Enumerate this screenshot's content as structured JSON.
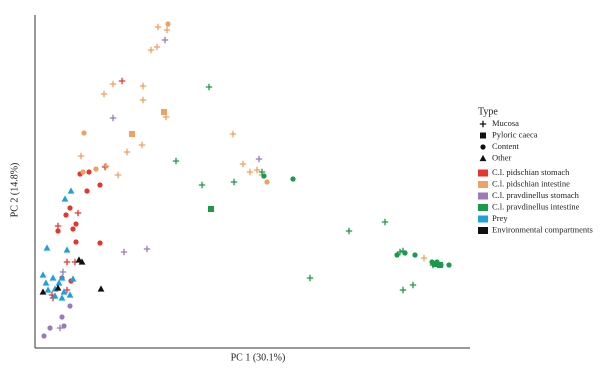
{
  "chart_data": {
    "type": "scatter",
    "xlabel": "PC 1 (30.1%)",
    "ylabel": "PC 2 (14.8%)",
    "xlim": [
      0,
      435
    ],
    "ylim": [
      0,
      333
    ],
    "legend_title": "Type",
    "types": [
      {
        "name": "Mucosa",
        "marker": "plus"
      },
      {
        "name": "Pyloric caeca",
        "marker": "square"
      },
      {
        "name": "Content",
        "marker": "circle"
      },
      {
        "name": "Other",
        "marker": "triangle"
      }
    ],
    "series": [
      {
        "name": "C.l. pidschian stomach",
        "color": "#e8352c",
        "x": [
          87,
          70,
          43,
          23,
          32,
          40,
          32,
          17,
          18,
          65,
          54,
          45,
          52,
          35,
          41,
          31,
          38,
          23,
          41,
          65,
          27,
          36
        ],
        "y": [
          267,
          181,
          135,
          122,
          86,
          86,
          58,
          53,
          50,
          163,
          176,
          174,
          157,
          140,
          124,
          133,
          119,
          117,
          106,
          105,
          70,
          67
        ],
        "markers": [
          "plus",
          "plus",
          "plus",
          "plus",
          "plus",
          "plus",
          "plus",
          "plus",
          "plus",
          "circle",
          "circle",
          "circle",
          "circle",
          "circle",
          "circle",
          "circle",
          "circle",
          "circle",
          "circle",
          "circle",
          "circle",
          "circle"
        ]
      },
      {
        "name": "C.l. pidschian intestine",
        "color": "#f0a062",
        "x": [
          123,
          132,
          116,
          122,
          78,
          108,
          69,
          108,
          131,
          107,
          92,
          83,
          71,
          46,
          198,
          208,
          222,
          215,
          227,
          389,
          129,
          97,
          133,
          49,
          48,
          61,
          232
        ],
        "y": [
          321,
          318,
          298,
          301,
          264,
          262,
          254,
          248,
          231,
          203,
          196,
          173,
          182,
          192,
          214,
          184,
          178,
          176,
          173,
          90,
          236,
          214,
          324,
          215,
          176,
          179,
          166
        ],
        "markers": [
          "plus",
          "plus",
          "plus",
          "plus",
          "plus",
          "plus",
          "plus",
          "plus",
          "plus",
          "plus",
          "plus",
          "plus",
          "plus",
          "plus",
          "plus",
          "plus",
          "plus",
          "plus",
          "plus",
          "plus",
          "square",
          "square",
          "circle",
          "circle",
          "circle",
          "circle",
          "circle"
        ]
      },
      {
        "name": "C.l. pravdinellus stomach",
        "color": "#9a7ab8",
        "x": [
          130,
          78,
          224,
          89,
          112,
          28,
          25,
          35,
          27,
          29,
          15,
          9
        ],
        "y": [
          308,
          230,
          189,
          96,
          99,
          76,
          20,
          42,
          31,
          22,
          20,
          12
        ],
        "markers": [
          "plus",
          "plus",
          "plus",
          "plus",
          "plus",
          "plus",
          "plus",
          "circle",
          "circle",
          "circle",
          "circle",
          "circle"
        ]
      },
      {
        "name": "C.l. pravdinellus intestine",
        "color": "#1a9a4a",
        "x": [
          174,
          141,
          167,
          199,
          227,
          275,
          314,
          350,
          368,
          378,
          365,
          368,
          398,
          229,
          258,
          362,
          370,
          380,
          397,
          406,
          414,
          402,
          176,
          400,
          405
        ],
        "y": [
          261,
          187,
          163,
          166,
          176,
          70,
          117,
          126,
          58,
          63,
          96,
          97,
          83,
          172,
          169,
          93,
          95,
          93,
          86,
          83,
          83,
          86,
          139,
          84,
          83
        ],
        "markers": [
          "plus",
          "plus",
          "plus",
          "plus",
          "plus",
          "plus",
          "plus",
          "plus",
          "plus",
          "plus",
          "plus",
          "plus",
          "plus",
          "circle",
          "circle",
          "circle",
          "circle",
          "circle",
          "circle",
          "circle",
          "circle",
          "circle",
          "square",
          "square",
          "square"
        ]
      },
      {
        "name": "Prey",
        "color": "#1fa0dc",
        "x": [
          36,
          30,
          12,
          32,
          8,
          18,
          27,
          38,
          24,
          13,
          20,
          29,
          35,
          27,
          20,
          11
        ],
        "y": [
          157,
          149,
          100,
          98,
          73,
          70,
          70,
          69,
          65,
          58,
          59,
          56,
          53,
          50,
          52,
          65
        ],
        "markers": [
          "triangle",
          "triangle",
          "triangle",
          "triangle",
          "triangle",
          "triangle",
          "triangle",
          "triangle",
          "triangle",
          "triangle",
          "triangle",
          "triangle",
          "triangle",
          "triangle",
          "triangle",
          "triangle"
        ]
      },
      {
        "name": "Environmental compartments",
        "color": "#111111",
        "x": [
          44,
          47,
          66,
          8,
          23
        ],
        "y": [
          88,
          86,
          59,
          56,
          60
        ],
        "markers": [
          "triangle",
          "triangle",
          "triangle",
          "triangle",
          "triangle"
        ]
      }
    ]
  }
}
